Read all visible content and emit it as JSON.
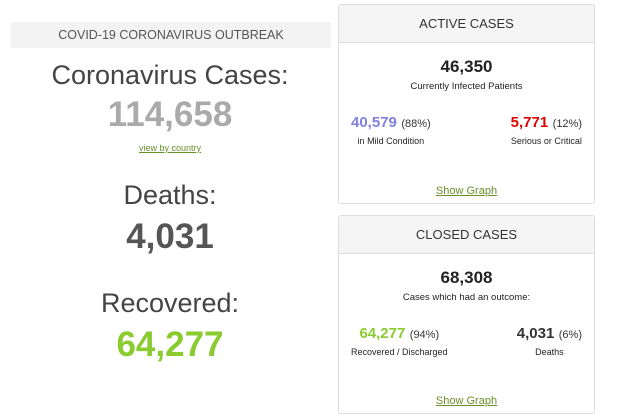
{
  "banner": "COVID-19 CORONAVIRUS OUTBREAK",
  "cases": {
    "label": "Coronavirus Cases:",
    "value": "114,658",
    "link": "view by country"
  },
  "deaths": {
    "label": "Deaths:",
    "value": "4,031"
  },
  "recovered": {
    "label": "Recovered:",
    "value": "64,277"
  },
  "active": {
    "title": "ACTIVE CASES",
    "total": "46,350",
    "subtitle": "Currently Infected Patients",
    "mild": {
      "value": "40,579",
      "pct": "(88%)",
      "label": "in Mild Condition"
    },
    "serious": {
      "value": "5,771",
      "pct": "(12%)",
      "label": "Serious or Critical"
    },
    "link": "Show Graph"
  },
  "closed": {
    "title": "CLOSED CASES",
    "total": "68,308",
    "subtitle": "Cases which had an outcome:",
    "recovered": {
      "value": "64,277",
      "pct": "(94%)",
      "label": "Recovered / Discharged"
    },
    "deaths": {
      "value": "4,031",
      "pct": "(6%)",
      "label": "Deaths"
    },
    "link": "Show Graph"
  },
  "colors": {
    "total": "#aaaaaa",
    "deaths": "#555555",
    "recovered": "#8acb2f",
    "mild": "#8080e0",
    "serious": "#e00000",
    "link": "#6a8f2a"
  }
}
